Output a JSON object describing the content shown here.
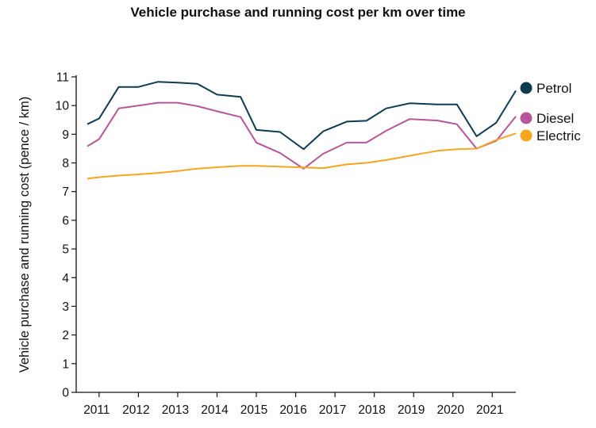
{
  "chart_data": {
    "type": "line",
    "title": "Vehicle purchase and running cost per km over time",
    "xlabel": "",
    "ylabel": "Vehicle purchase and running cost (pence / km)",
    "x": [
      2010.7,
      2011.0,
      2011.5,
      2012.0,
      2012.5,
      2013.0,
      2013.5,
      2014.0,
      2014.6,
      2015.0,
      2015.6,
      2016.2,
      2016.7,
      2017.3,
      2017.8,
      2018.3,
      2018.9,
      2019.6,
      2020.1,
      2020.6,
      2021.1,
      2021.6
    ],
    "series": [
      {
        "name": "Petrol",
        "color": "#0e3a52",
        "values": [
          9.35,
          9.55,
          10.65,
          10.65,
          10.83,
          10.8,
          10.76,
          10.38,
          10.3,
          9.15,
          9.08,
          8.48,
          9.1,
          9.44,
          9.47,
          9.9,
          10.08,
          10.04,
          10.04,
          8.93,
          9.4,
          10.52
        ]
      },
      {
        "name": "Diesel",
        "color": "#b8559c",
        "values": [
          8.58,
          8.83,
          9.9,
          10.0,
          10.1,
          10.1,
          9.98,
          9.8,
          9.6,
          8.71,
          8.35,
          7.8,
          8.32,
          8.71,
          8.71,
          9.12,
          9.53,
          9.48,
          9.35,
          8.5,
          8.77,
          9.62
        ]
      },
      {
        "name": "Electric",
        "color": "#f5a51e",
        "values": [
          7.45,
          7.5,
          7.56,
          7.6,
          7.65,
          7.72,
          7.8,
          7.85,
          7.9,
          7.9,
          7.87,
          7.84,
          7.82,
          7.95,
          8.0,
          8.1,
          8.25,
          8.42,
          8.48,
          8.5,
          8.8,
          9.03
        ]
      }
    ],
    "xticks": [
      2011,
      2012,
      2013,
      2014,
      2015,
      2016,
      2017,
      2018,
      2019,
      2020,
      2021
    ],
    "yticks": [
      0,
      1,
      2,
      3,
      4,
      5,
      6,
      7,
      8,
      9,
      10,
      11
    ],
    "xlim": [
      2010.7,
      2021.6
    ],
    "ylim": [
      0,
      11
    ],
    "grid": false,
    "legend": "right"
  }
}
